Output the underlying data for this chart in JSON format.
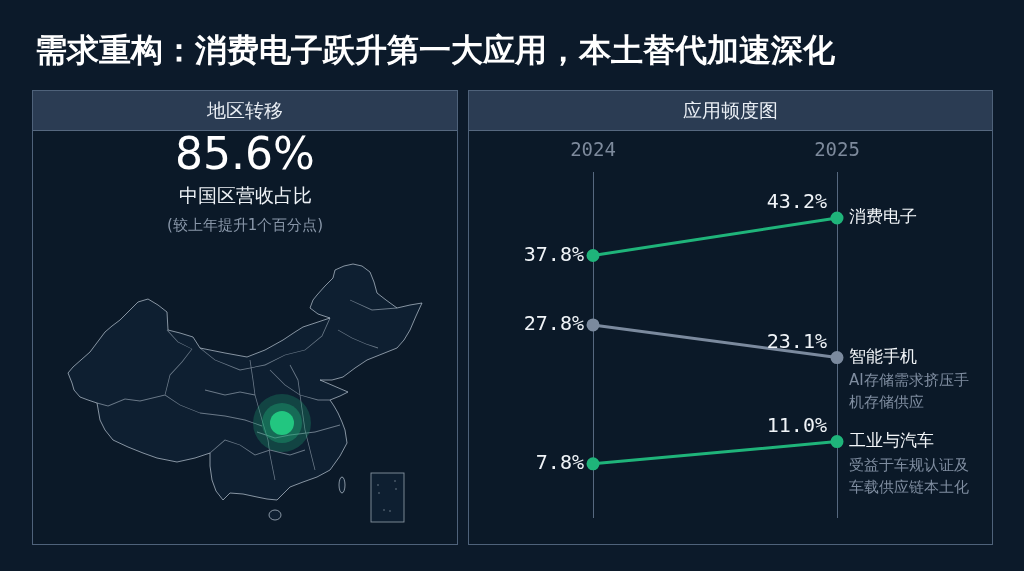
{
  "chart_data": [
    {
      "type": "other",
      "title": "需求重构：消费电子跃升第一大应用，本土替代加速深化",
      "subtitle": "地区转移",
      "annotations": [
        "85.6%",
        "中国区营收占比",
        "(较上年提升1个百分点)"
      ]
    },
    {
      "type": "line",
      "title": "应用顿度图",
      "categories": [
        "2024",
        "2025"
      ],
      "series": [
        {
          "name": "消费电子",
          "color": "#1fb47a",
          "values": [
            37.8,
            43.2
          ],
          "value_labels": [
            "37.8%",
            "43.2%"
          ]
        },
        {
          "name": "智能手机",
          "color": "#7b8a9e",
          "values": [
            27.8,
            23.1
          ],
          "value_labels": [
            "27.8%",
            "23.1%"
          ]
        },
        {
          "name": "工业与汽车",
          "color": "#1fb47a",
          "values": [
            7.8,
            11.0
          ],
          "value_labels": [
            "7.8%",
            "11.0%"
          ]
        }
      ],
      "annotations": [
        {
          "text": "AI存储需求挤压手机存储供应",
          "x": "2025",
          "y": 23.1
        },
        {
          "text": "受益于车规认证及车载供应链本土化",
          "x": "2025",
          "y": 11.0
        }
      ],
      "grid": "x",
      "marker": "circle"
    }
  ]
}
